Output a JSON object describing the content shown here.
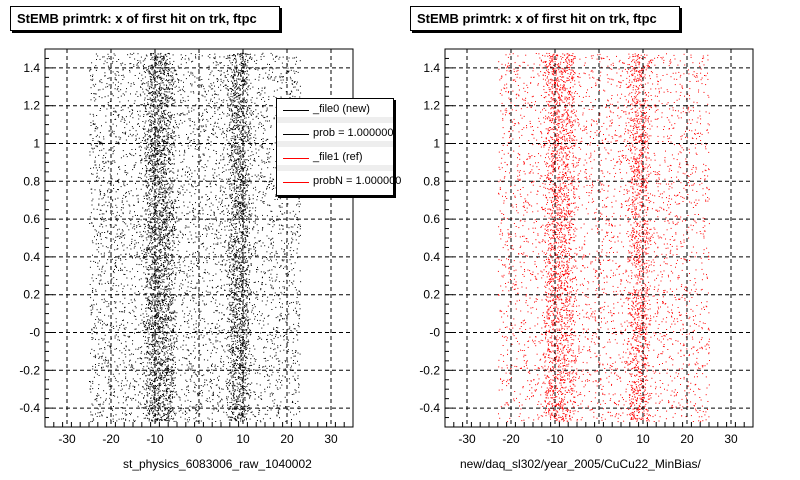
{
  "panels": [
    {
      "title": "StEMB primtrk: x of first hit on trk, ftpc",
      "xlabel": "st_physics_6083006_raw_1040002"
    },
    {
      "title": "StEMB primtrk: x of first hit on trk, ftpc",
      "xlabel": "new/daq_sl302/year_2005/CuCu22_MinBias/"
    }
  ],
  "legend": {
    "entries": [
      {
        "label": "_file0 (new)",
        "color": "#000000"
      },
      {
        "label": "prob = 1.000000",
        "color": "#000000"
      },
      {
        "label": "_file1 (ref)",
        "color": "#ff0000"
      },
      {
        "label": "probN = 1.000000",
        "color": "#ff0000"
      }
    ]
  },
  "chart_data": [
    {
      "type": "scatter",
      "title": "StEMB primtrk: x of first hit on trk, ftpc",
      "xlabel": "st_physics_6083006_raw_1040002",
      "ylabel": "",
      "xlim": [
        -35,
        35
      ],
      "ylim": [
        -0.5,
        1.5
      ],
      "xticks": [
        -30,
        -20,
        -10,
        0,
        10,
        20,
        30
      ],
      "yticks": [
        1.4,
        1.2,
        1,
        0.8,
        0.6,
        0.4,
        0.2,
        0,
        -0.2,
        -0.4
      ],
      "ytick_labels": [
        "1.4",
        "1.2",
        "1",
        "0.8",
        "0.6",
        "0.4",
        "0.2",
        "-0",
        "-0.2",
        "-0.4"
      ],
      "grid": true,
      "series": [
        {
          "name": "_file0 (new)",
          "color": "#000000",
          "x_range": [
            -25,
            23
          ],
          "dense_bands": [
            [
              -12,
              -6
            ],
            [
              7,
              11
            ]
          ],
          "n_points": 9000
        }
      ]
    },
    {
      "type": "scatter",
      "title": "StEMB primtrk: x of first hit on trk, ftpc",
      "xlabel": "new/daq_sl302/year_2005/CuCu22_MinBias/",
      "ylabel": "",
      "xlim": [
        -35,
        35
      ],
      "ylim": [
        -0.5,
        1.5
      ],
      "xticks": [
        -30,
        -20,
        -10,
        0,
        10,
        20,
        30
      ],
      "yticks": [
        1.4,
        1.2,
        1,
        0.8,
        0.6,
        0.4,
        0.2,
        0,
        -0.2,
        -0.4
      ],
      "ytick_labels": [
        "1.4",
        "1.2",
        "1",
        "0.8",
        "0.6",
        "0.4",
        "0.2",
        "-0",
        "-0.2",
        "-0.4"
      ],
      "grid": true,
      "series": [
        {
          "name": "_file1 (ref)",
          "color": "#ff0000",
          "x_range": [
            -23,
            25
          ],
          "dense_bands": [
            [
              -12,
              -6
            ],
            [
              7,
              11
            ]
          ],
          "n_points": 6500
        }
      ]
    }
  ]
}
